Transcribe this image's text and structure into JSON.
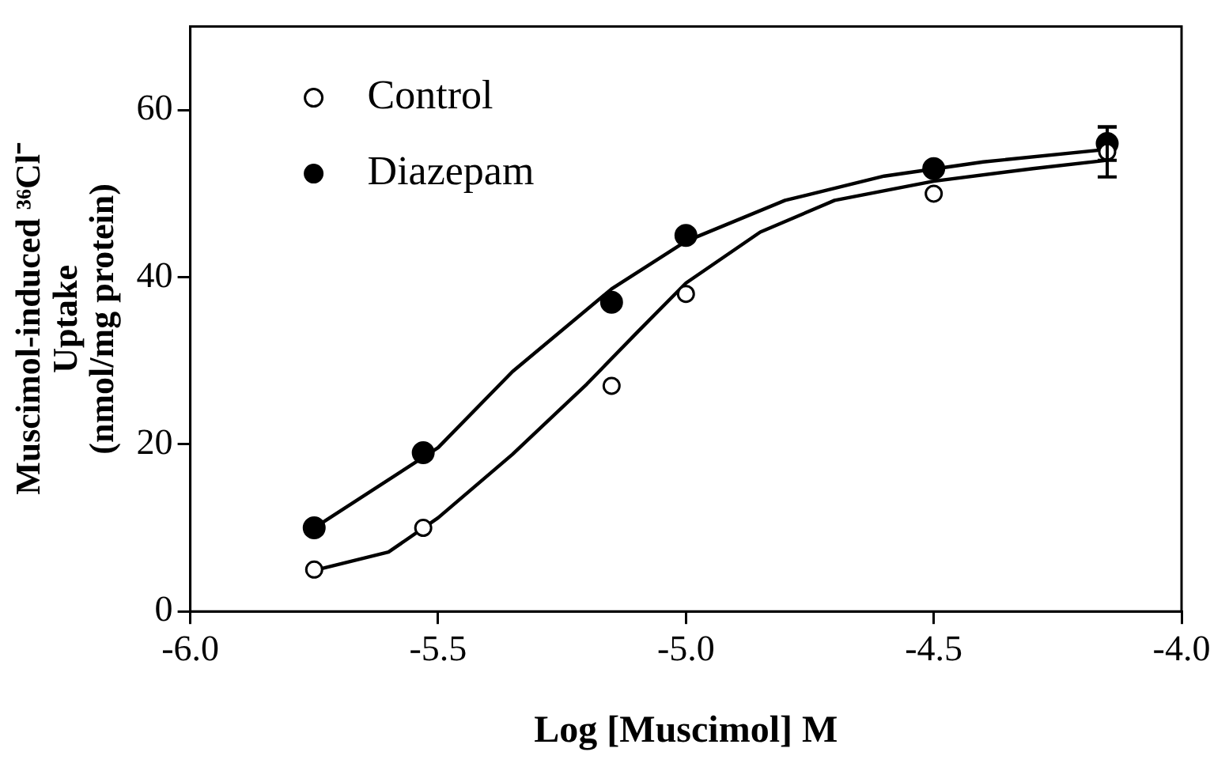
{
  "chart_data": {
    "type": "scatter",
    "xlabel": "Log [Muscimol] M",
    "ylabel": "Muscimol-induced ³⁶Cl⁻\nUptake\n(nmol/mg protein)",
    "xlim": [
      -6.0,
      -4.0
    ],
    "xticks": [
      {
        "value": -6,
        "label": "-6.0"
      },
      {
        "value": -5.5,
        "label": "-5.5"
      },
      {
        "value": -5,
        "label": "-5.0"
      },
      {
        "value": -4.5,
        "label": "-4.5"
      },
      {
        "value": -4,
        "label": "-4.0"
      }
    ],
    "ylim": [
      0,
      70
    ],
    "yticks": [
      0,
      20,
      40,
      60
    ],
    "grid": false,
    "legend": "top left",
    "marker": "circle",
    "series": [
      {
        "name": "Control",
        "color": "#ffffff",
        "x": [
          -5.75,
          -5.53,
          -5.15,
          -5.0,
          -4.5,
          -4.15
        ],
        "values": [
          5,
          10,
          27,
          38,
          50,
          55
        ],
        "errors": [
          null,
          null,
          null,
          null,
          null,
          3
        ]
      },
      {
        "name": "Diazepam",
        "color": "#000000",
        "x": [
          -5.75,
          -5.53,
          -5.15,
          -5.0,
          -4.5,
          -4.15
        ],
        "values": [
          10,
          19,
          37,
          45,
          53,
          56
        ],
        "errors": [
          null,
          null,
          null,
          null,
          null,
          2
        ]
      },
      {
        "type": "line",
        "color": "#000000",
        "marker": "none",
        "x": [
          -5.75,
          -5.6,
          -5.5,
          -5.35,
          -5.2,
          -5.1,
          -5.0,
          -4.85,
          -4.7,
          -4.5,
          -4.3,
          -4.15
        ],
        "values": [
          4.9,
          7.1,
          11.2,
          18.8,
          27.2,
          33.3,
          39.3,
          45.4,
          49.2,
          51.5,
          53,
          54
        ]
      },
      {
        "type": "line",
        "color": "#000000",
        "marker": "none",
        "x": [
          -5.75,
          -5.5,
          -5.35,
          -5.15,
          -5.0,
          -4.8,
          -4.6,
          -4.4,
          -4.15
        ],
        "values": [
          10,
          19.6,
          28.7,
          38.6,
          44.3,
          49.2,
          52.1,
          53.8,
          55.3
        ]
      }
    ]
  }
}
